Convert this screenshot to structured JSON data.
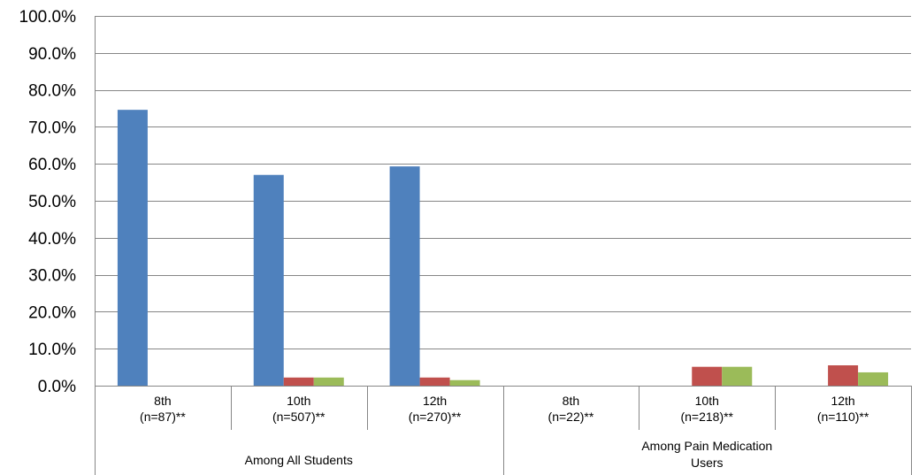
{
  "chart_data": {
    "type": "bar",
    "title": "",
    "xlabel": "",
    "ylabel": "",
    "ylim": [
      0,
      100
    ],
    "y_tick_labels": [
      "0.0%",
      "10.0%",
      "20.0%",
      "30.0%",
      "40.0%",
      "50.0%",
      "60.0%",
      "70.0%",
      "80.0%",
      "90.0%",
      "100.0%"
    ],
    "grid": true,
    "legend": "none",
    "categories": [
      {
        "grade": "8th",
        "n": "(n=87)**"
      },
      {
        "grade": "10th",
        "n": "(n=507)**"
      },
      {
        "grade": "12th",
        "n": "(n=270)**"
      },
      {
        "grade": "8th",
        "n": "(n=22)**"
      },
      {
        "grade": "10th",
        "n": "(n=218)**"
      },
      {
        "grade": "12th",
        "n": "(n=110)**"
      }
    ],
    "groups": [
      {
        "label_lines": [
          "Among All Students"
        ],
        "span": [
          0,
          2
        ]
      },
      {
        "label_lines": [
          "Among Pain Medication",
          "Users"
        ],
        "span": [
          3,
          5
        ]
      }
    ],
    "series": [
      {
        "color": "#4F81BD",
        "values": [
          74.6,
          57.0,
          59.3,
          0,
          0,
          0
        ]
      },
      {
        "color": "#C0504D",
        "values": [
          0,
          2.2,
          2.2,
          0,
          5.1,
          5.5
        ]
      },
      {
        "color": "#9BBB59",
        "values": [
          0,
          2.2,
          1.5,
          0,
          5.1,
          3.6
        ]
      }
    ]
  }
}
